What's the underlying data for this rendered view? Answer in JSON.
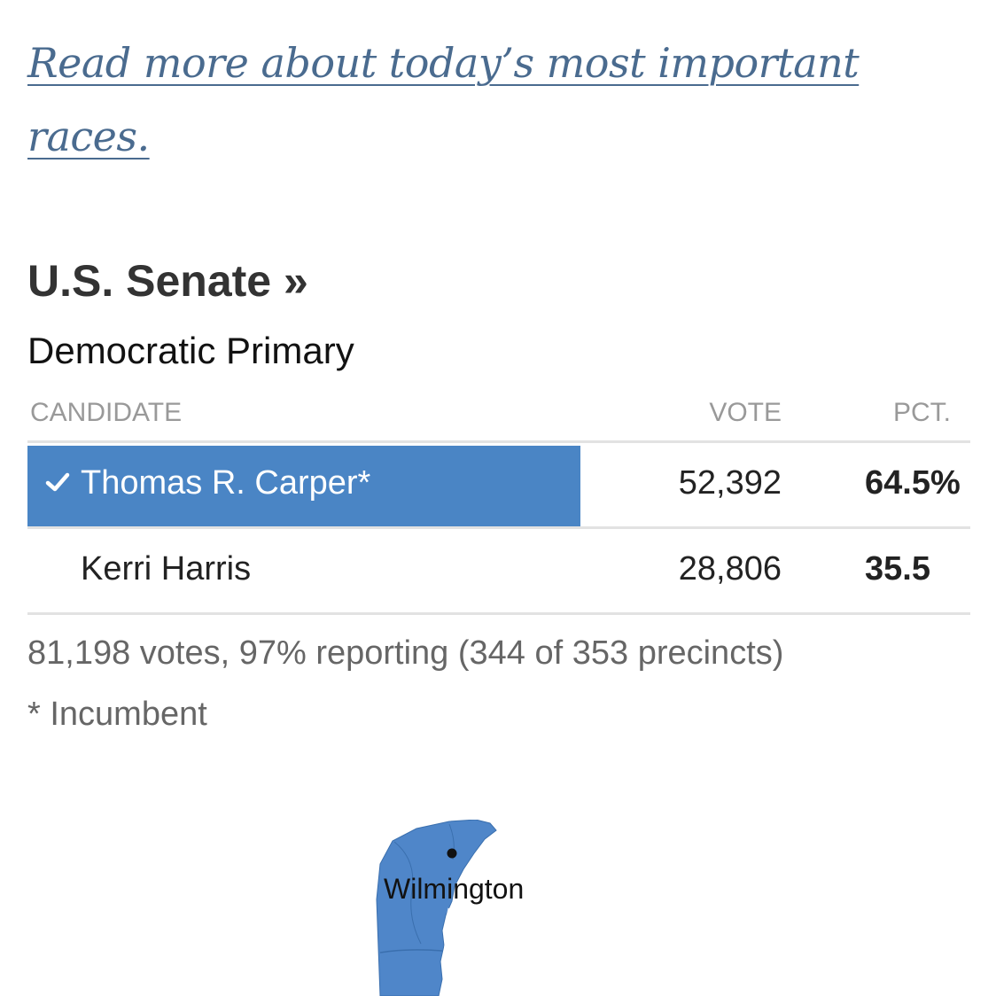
{
  "read_more": {
    "text": "Read more about today’s most important races."
  },
  "race": {
    "title": "U.S. Senate »",
    "subtitle": "Democratic Primary"
  },
  "table": {
    "headers": {
      "candidate": "CANDIDATE",
      "vote": "VOTE",
      "pct": "PCT."
    },
    "rows": [
      {
        "name": "Thomas R. Carper*",
        "votes": "52,392",
        "pct": "64.5%",
        "winner": true
      },
      {
        "name": "Kerri Harris",
        "votes": "28,806",
        "pct": "35.5",
        "winner": false
      }
    ]
  },
  "summary": {
    "reporting": "81,198 votes, 97% reporting (344 of 353 precincts)",
    "incumbent_note": "* Incumbent"
  },
  "map": {
    "city_label": "Wilmington"
  },
  "colors": {
    "winner": "#4a85c5",
    "link": "#4a6b8f",
    "map_fill": "#4f86c9"
  }
}
